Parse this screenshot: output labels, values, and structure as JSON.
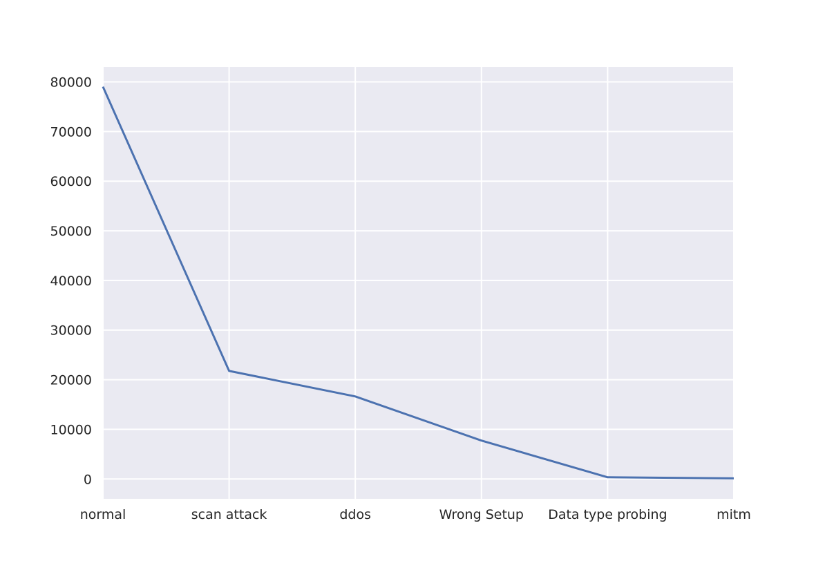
{
  "chart_data": {
    "type": "line",
    "categories": [
      "normal",
      "scan attack",
      "ddos",
      "Wrong Setup",
      "Data type probing",
      "mitm"
    ],
    "series": [
      {
        "values": [
          79035,
          21759,
          16625,
          7734,
          340,
          116
        ]
      }
    ],
    "ylim": [
      -4000,
      83000
    ],
    "yticks": [
      0,
      10000,
      20000,
      30000,
      40000,
      50000,
      60000,
      70000,
      80000
    ],
    "grid": true,
    "style": {
      "plot_background": "#EAEAF2",
      "grid_color": "#FFFFFF",
      "line_color": "#4C72B0",
      "text_color": "#262626"
    }
  }
}
